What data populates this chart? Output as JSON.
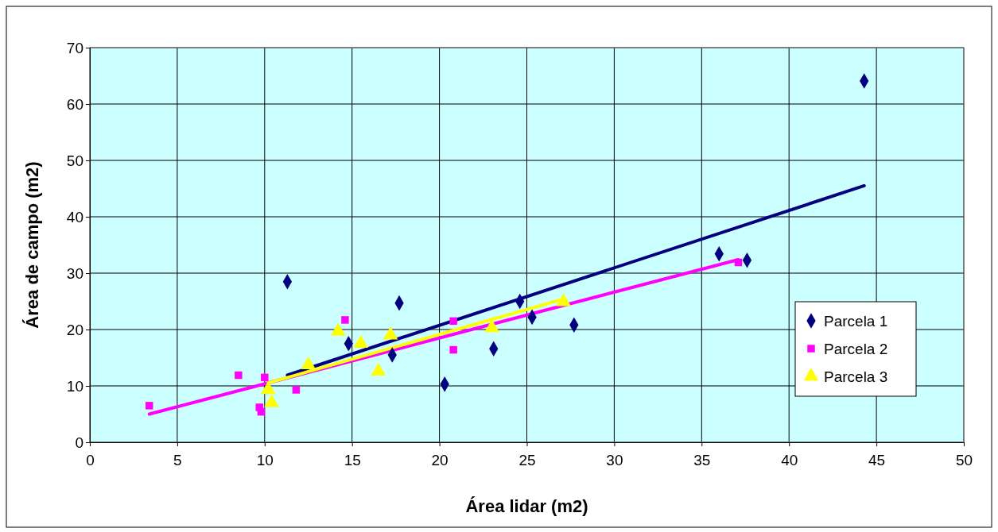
{
  "chart_data": {
    "type": "scatter",
    "xlabel": "Área lidar (m2)",
    "ylabel": "Área de campo (m2)",
    "xlim": [
      0,
      50
    ],
    "ylim": [
      0,
      70
    ],
    "xticks": [
      0,
      5,
      10,
      15,
      20,
      25,
      30,
      35,
      40,
      45,
      50
    ],
    "yticks": [
      0,
      10,
      20,
      30,
      40,
      50,
      60,
      70
    ],
    "grid": true,
    "legend": "right",
    "series": [
      {
        "name": "Parcela 1",
        "color": "#000080",
        "marker": "diamond",
        "x": [
          11.3,
          14.8,
          17.3,
          17.7,
          20.3,
          23.1,
          24.6,
          25.3,
          27.7,
          36,
          37.6,
          44.3
        ],
        "values": [
          28.5,
          17.5,
          15.5,
          24.7,
          10.3,
          16.6,
          25,
          22.2,
          20.8,
          33.4,
          32.3,
          64.1
        ]
      },
      {
        "name": "Parcela 2",
        "color": "#ff00ff",
        "marker": "square",
        "x": [
          3.4,
          8.5,
          10,
          9.7,
          9.8,
          11.8,
          14.6,
          20.8,
          20.8,
          37.1
        ],
        "values": [
          6.5,
          11.9,
          11.5,
          6.2,
          5.4,
          9.3,
          21.7,
          21.5,
          16.4,
          31.9
        ]
      },
      {
        "name": "Parcela 3",
        "color": "#ffff00",
        "marker": "triangle",
        "x": [
          10.2,
          10.4,
          12.5,
          14.2,
          15.5,
          16.5,
          17.2,
          23,
          27.1
        ],
        "values": [
          9.3,
          7,
          13.7,
          19.7,
          17.5,
          12.6,
          19,
          20.3,
          24.9
        ]
      },
      {
        "type": "line",
        "color": "#000080",
        "x": [
          11.3,
          44.3
        ],
        "values": [
          11.9,
          45.5
        ]
      },
      {
        "type": "line",
        "color": "#ff00ff",
        "x": [
          3.4,
          37.1
        ],
        "values": [
          5.0,
          32.4
        ]
      },
      {
        "type": "line",
        "color": "#ffff00",
        "x": [
          10.2,
          27.1
        ],
        "values": [
          10.5,
          25.4
        ]
      }
    ]
  }
}
